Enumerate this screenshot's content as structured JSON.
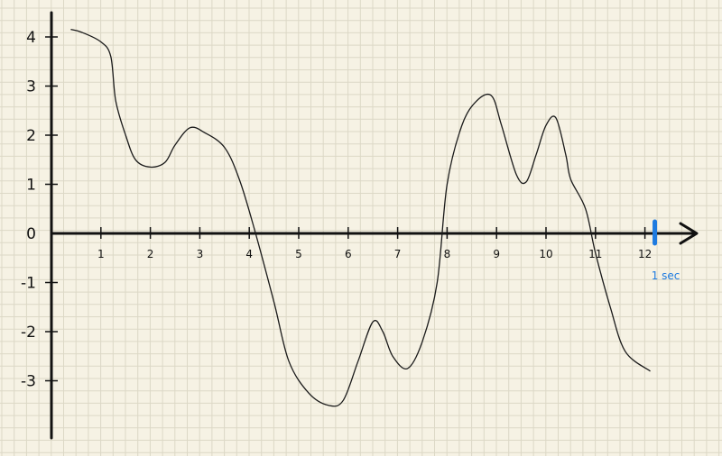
{
  "chart_data": {
    "type": "line",
    "title": "",
    "xlabel": "",
    "ylabel": "",
    "xlim": [
      0,
      13
    ],
    "ylim": [
      -4,
      4.5
    ],
    "grid": true,
    "x_ticks": [
      1,
      2,
      3,
      4,
      5,
      6,
      7,
      8,
      9,
      10,
      11,
      12
    ],
    "x_tick_labels": [
      "1",
      "2",
      "3",
      "4",
      "5",
      "6",
      "7",
      "8",
      "9",
      "10",
      "11",
      "12"
    ],
    "y_ticks": [
      4,
      3,
      2,
      1,
      0,
      -1,
      -2,
      -3
    ],
    "y_tick_labels": [
      "4",
      "3",
      "2",
      "1",
      "0",
      "-1",
      "-2",
      "-3"
    ],
    "series": [
      {
        "color": "#1a1a1a",
        "x": [
          0.4,
          0.6,
          1.0,
          1.2,
          1.3,
          1.5,
          1.7,
          2.0,
          2.3,
          2.5,
          2.8,
          3.1,
          3.5,
          3.8,
          4.1,
          4.5,
          4.8,
          5.2,
          5.6,
          5.9,
          6.2,
          6.5,
          6.7,
          6.9,
          7.2,
          7.5,
          7.8,
          8.0,
          8.3,
          8.6,
          8.9,
          9.1,
          9.4,
          9.6,
          9.8,
          10.0,
          10.2,
          10.4,
          10.5,
          10.8,
          11.0,
          11.3,
          11.6,
          12.1
        ],
        "y": [
          4.15,
          4.1,
          3.9,
          3.6,
          2.7,
          2.0,
          1.5,
          1.35,
          1.45,
          1.8,
          2.15,
          2.05,
          1.75,
          1.1,
          0.1,
          -1.4,
          -2.6,
          -3.25,
          -3.5,
          -3.4,
          -2.6,
          -1.8,
          -2.0,
          -2.5,
          -2.75,
          -2.2,
          -1.0,
          1.0,
          2.2,
          2.7,
          2.8,
          2.2,
          1.2,
          1.05,
          1.6,
          2.2,
          2.35,
          1.6,
          1.1,
          0.5,
          -0.4,
          -1.5,
          -2.4,
          -2.8
        ]
      }
    ],
    "annotations": [
      {
        "text": "1 sec",
        "x": 12.2,
        "color": "#1e7be0"
      }
    ]
  }
}
